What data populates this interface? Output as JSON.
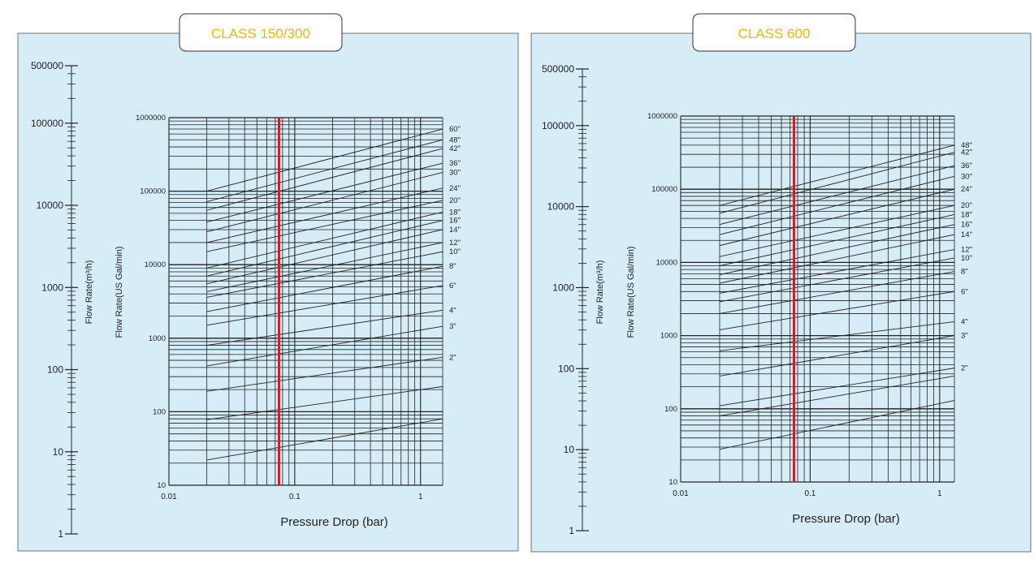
{
  "colors": {
    "panel_bg": "#d6ecf7",
    "title_text": "#f2b705",
    "marker_line": "#e8141c",
    "grid": "#222222"
  },
  "chart_data": [
    {
      "type": "line",
      "title": "CLASS 150/300",
      "xlabel": "Pressure Drop (bar)",
      "ylabel": "Flow Rate(US Gal/min)",
      "secondary_ylabel": "Flow Rate(m³/h)",
      "x_scale": "log",
      "y_scale": "log",
      "xlim": [
        0.01,
        1.5
      ],
      "ylim": [
        10,
        1000000
      ],
      "x_ticks": [
        "0.01",
        "0.1",
        "1"
      ],
      "y_ticks": [
        "10",
        "100",
        "1000",
        "10000",
        "100000",
        "1000000"
      ],
      "secondary_ticks": [
        "1",
        "10",
        "100",
        "1000",
        "10000",
        "100000",
        "500000"
      ],
      "secondary_ylim": [
        1,
        500000
      ],
      "marker_x": 0.075,
      "grid": true,
      "series": [
        {
          "name": "60\"",
          "values": [
            [
              0.02,
              100000
            ],
            [
              1.5,
              700000
            ]
          ]
        },
        {
          "name": "48\"",
          "values": [
            [
              0.02,
              72000
            ],
            [
              1.5,
              500000
            ]
          ]
        },
        {
          "name": "42\"",
          "values": [
            [
              0.02,
              55000
            ],
            [
              1.5,
              380000
            ]
          ]
        },
        {
          "name": "36\"",
          "values": [
            [
              0.02,
              38000
            ],
            [
              1.5,
              240000
            ]
          ]
        },
        {
          "name": "30\"",
          "values": [
            [
              0.02,
              28000
            ],
            [
              1.5,
              180000
            ]
          ]
        },
        {
          "name": "24\"",
          "values": [
            [
              0.02,
              20000
            ],
            [
              1.5,
              110000
            ]
          ]
        },
        {
          "name": "20\"",
          "values": [
            [
              0.02,
              15000
            ],
            [
              1.5,
              75000
            ]
          ]
        },
        {
          "name": "18\"",
          "values": [
            [
              0.02,
              9000
            ],
            [
              1.5,
              52000
            ]
          ]
        },
        {
          "name": "16\"",
          "values": [
            [
              0.02,
              7000
            ],
            [
              1.5,
              40000
            ]
          ]
        },
        {
          "name": "14\"",
          "values": [
            [
              0.02,
              5500
            ],
            [
              1.5,
              30000
            ]
          ]
        },
        {
          "name": "12\"",
          "values": [
            [
              0.02,
              4300
            ],
            [
              1.5,
              20000
            ]
          ]
        },
        {
          "name": "10\"",
          "values": [
            [
              0.02,
              3600
            ],
            [
              1.5,
              15000
            ]
          ]
        },
        {
          "name": "8\"",
          "values": [
            [
              0.02,
              2300
            ],
            [
              1.5,
              9500
            ]
          ]
        },
        {
          "name": "6\"",
          "values": [
            [
              0.02,
              1500
            ],
            [
              1.5,
              5200
            ]
          ]
        },
        {
          "name": "4\"",
          "values": [
            [
              0.02,
              800
            ],
            [
              1.5,
              2400
            ]
          ]
        },
        {
          "name": "3\"",
          "values": [
            [
              0.02,
              420
            ],
            [
              1.5,
              1450
            ]
          ]
        },
        {
          "name": "2\"",
          "values": [
            [
              0.02,
              190
            ],
            [
              1.5,
              550
            ]
          ]
        }
      ],
      "series_extra": [
        {
          "values": [
            [
              0.02,
              78
            ],
            [
              1.5,
              220
            ]
          ]
        },
        {
          "values": [
            [
              0.02,
              22
            ],
            [
              1.5,
              80
            ]
          ]
        }
      ]
    },
    {
      "type": "line",
      "title": "CLASS 600",
      "xlabel": "Pressure Drop (bar)",
      "ylabel": "Flow Rate(US Gal/min)",
      "secondary_ylabel": "Flow Rate(m³/h)",
      "x_scale": "log",
      "y_scale": "log",
      "xlim": [
        0.01,
        1.3
      ],
      "ylim": [
        10,
        1000000
      ],
      "x_ticks": [
        "0.01",
        "0.1",
        "1"
      ],
      "y_ticks": [
        "10",
        "100",
        "1000",
        "10000",
        "100000",
        "1000000"
      ],
      "secondary_ticks": [
        "1",
        "10",
        "100",
        "1000",
        "10000",
        "100000",
        "500000"
      ],
      "secondary_ylim": [
        1,
        500000
      ],
      "marker_x": 0.075,
      "grid": true,
      "series": [
        {
          "name": "48\"",
          "values": [
            [
              0.02,
              60000
            ],
            [
              1.3,
              400000
            ]
          ]
        },
        {
          "name": "42\"",
          "values": [
            [
              0.02,
              47000
            ],
            [
              1.3,
              320000
            ]
          ]
        },
        {
          "name": "36\"",
          "values": [
            [
              0.02,
              33000
            ],
            [
              1.3,
              210000
            ]
          ]
        },
        {
          "name": "30\"",
          "values": [
            [
              0.02,
              24000
            ],
            [
              1.3,
              150000
            ]
          ]
        },
        {
          "name": "24\"",
          "values": [
            [
              0.02,
              17000
            ],
            [
              1.3,
              100000
            ]
          ]
        },
        {
          "name": "20\"",
          "values": [
            [
              0.02,
              12000
            ],
            [
              1.3,
              60000
            ]
          ]
        },
        {
          "name": "18\"",
          "values": [
            [
              0.02,
              9000
            ],
            [
              1.3,
              45000
            ]
          ]
        },
        {
          "name": "16\"",
          "values": [
            [
              0.02,
              6800
            ],
            [
              1.3,
              33000
            ]
          ]
        },
        {
          "name": "14\"",
          "values": [
            [
              0.02,
              5200
            ],
            [
              1.3,
              24000
            ]
          ]
        },
        {
          "name": "12\"",
          "values": [
            [
              0.02,
              3800
            ],
            [
              1.3,
              15000
            ]
          ]
        },
        {
          "name": "10\"",
          "values": [
            [
              0.02,
              2900
            ],
            [
              1.3,
              11500
            ]
          ]
        },
        {
          "name": "8\"",
          "values": [
            [
              0.02,
              2000
            ],
            [
              1.3,
              7500
            ]
          ]
        },
        {
          "name": "6\"",
          "values": [
            [
              0.02,
              1200
            ],
            [
              1.3,
              4000
            ]
          ]
        },
        {
          "name": "4\"",
          "values": [
            [
              0.02,
              620
            ],
            [
              1.3,
              1550
            ]
          ]
        },
        {
          "name": "3\"",
          "values": [
            [
              0.02,
              280
            ],
            [
              1.3,
              1000
            ]
          ]
        },
        {
          "name": "2\"",
          "values": [
            [
              0.02,
              110
            ],
            [
              1.3,
              360
            ]
          ]
        }
      ],
      "series_extra": [
        {
          "values": [
            [
              0.02,
              80
            ],
            [
              1.3,
              280
            ]
          ]
        },
        {
          "values": [
            [
              0.02,
              28
            ],
            [
              1.3,
              130
            ]
          ]
        }
      ]
    }
  ]
}
